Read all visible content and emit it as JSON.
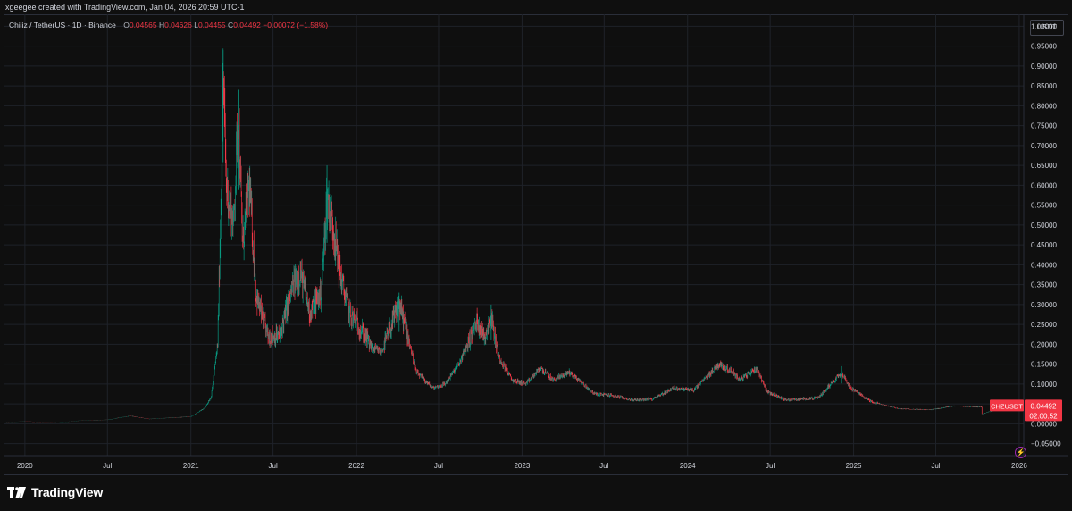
{
  "credit": "xgeegee created with TradingView.com, Jan 04, 2026 20:59 UTC-1",
  "symbol": {
    "name": "Chiliz / TetherUS · 1D · Binance",
    "o_label": "O",
    "o_value": "0.04565",
    "h_label": "H",
    "h_value": "0.04626",
    "l_label": "L",
    "l_value": "0.04455",
    "c_label": "C",
    "c_value": "0.04492",
    "change": "−0.00072 (−1.58%)"
  },
  "currency_button": "USDT",
  "brand": "TradingView",
  "icons": {
    "logo": "tradingview-logo-icon",
    "bolt": "lightning-icon"
  },
  "colors": {
    "up": "#089981",
    "down": "#f23645",
    "grid": "#1f2229",
    "text": "#d1d4dc",
    "price_line": "#f23645"
  },
  "chart_data": {
    "type": "candlestick",
    "symbol": "CHZUSDT",
    "interval": "1D",
    "exchange": "Binance",
    "last_price": 0.04492,
    "last_price_label": "0.04492",
    "price_tag_label": "CHZUSDT",
    "countdown": "02:00:52",
    "y_ticks": [
      "1.00000",
      "0.95000",
      "0.90000",
      "0.85000",
      "0.80000",
      "0.75000",
      "0.70000",
      "0.65000",
      "0.60000",
      "0.55000",
      "0.50000",
      "0.45000",
      "0.40000",
      "0.35000",
      "0.30000",
      "0.25000",
      "0.20000",
      "0.15000",
      "0.10000",
      "0.05000",
      "0.00000",
      "−0.05000"
    ],
    "y_tick_values": [
      1.0,
      0.95,
      0.9,
      0.85,
      0.8,
      0.75,
      0.7,
      0.65,
      0.6,
      0.55,
      0.5,
      0.45,
      0.4,
      0.35,
      0.3,
      0.25,
      0.2,
      0.15,
      0.1,
      0.05,
      0.0,
      -0.05
    ],
    "ylim": [
      -0.08,
      1.03
    ],
    "x_ticks": [
      {
        "label": "2020",
        "date": "2020-01-01"
      },
      {
        "label": "Jul",
        "date": "2020-07-01"
      },
      {
        "label": "2021",
        "date": "2021-01-01"
      },
      {
        "label": "Jul",
        "date": "2021-07-01"
      },
      {
        "label": "2022",
        "date": "2022-01-01"
      },
      {
        "label": "Jul",
        "date": "2022-07-01"
      },
      {
        "label": "2023",
        "date": "2023-01-01"
      },
      {
        "label": "Jul",
        "date": "2023-07-01"
      },
      {
        "label": "2024",
        "date": "2024-01-01"
      },
      {
        "label": "Jul",
        "date": "2024-07-01"
      },
      {
        "label": "2025",
        "date": "2025-01-01"
      },
      {
        "label": "Jul",
        "date": "2025-07-01"
      },
      {
        "label": "2026",
        "date": "2026-01-01"
      }
    ],
    "xlim": [
      "2019-11-15",
      "2026-01-11"
    ],
    "grid": true,
    "series": [
      {
        "values": [
          {
            "date": "2019-11-20",
            "close": 0.004
          },
          {
            "date": "2020-01-01",
            "close": 0.006
          },
          {
            "date": "2020-03-15",
            "close": 0.003
          },
          {
            "date": "2020-05-01",
            "close": 0.008
          },
          {
            "date": "2020-07-01",
            "close": 0.01
          },
          {
            "date": "2020-08-20",
            "close": 0.02
          },
          {
            "date": "2020-10-01",
            "close": 0.012
          },
          {
            "date": "2020-11-15",
            "close": 0.015
          },
          {
            "date": "2021-01-01",
            "close": 0.018
          },
          {
            "date": "2021-02-01",
            "close": 0.04
          },
          {
            "date": "2021-02-15",
            "close": 0.07
          },
          {
            "date": "2021-03-01",
            "close": 0.2
          },
          {
            "date": "2021-03-08",
            "close": 0.55
          },
          {
            "date": "2021-03-13",
            "close": 0.88
          },
          {
            "date": "2021-03-20",
            "close": 0.6
          },
          {
            "date": "2021-04-05",
            "close": 0.5
          },
          {
            "date": "2021-04-15",
            "close": 0.78
          },
          {
            "date": "2021-04-25",
            "close": 0.45
          },
          {
            "date": "2021-05-10",
            "close": 0.6
          },
          {
            "date": "2021-05-25",
            "close": 0.32
          },
          {
            "date": "2021-06-20",
            "close": 0.22
          },
          {
            "date": "2021-07-15",
            "close": 0.22
          },
          {
            "date": "2021-08-15",
            "close": 0.35
          },
          {
            "date": "2021-08-30",
            "close": 0.38
          },
          {
            "date": "2021-09-20",
            "close": 0.28
          },
          {
            "date": "2021-10-15",
            "close": 0.33
          },
          {
            "date": "2021-10-28",
            "close": 0.57
          },
          {
            "date": "2021-11-10",
            "close": 0.5
          },
          {
            "date": "2021-11-25",
            "close": 0.38
          },
          {
            "date": "2021-12-15",
            "close": 0.28
          },
          {
            "date": "2022-01-15",
            "close": 0.23
          },
          {
            "date": "2022-02-05",
            "close": 0.19
          },
          {
            "date": "2022-02-25",
            "close": 0.18
          },
          {
            "date": "2022-03-20",
            "close": 0.25
          },
          {
            "date": "2022-04-05",
            "close": 0.3
          },
          {
            "date": "2022-04-25",
            "close": 0.22
          },
          {
            "date": "2022-05-12",
            "close": 0.13
          },
          {
            "date": "2022-06-18",
            "close": 0.09
          },
          {
            "date": "2022-07-15",
            "close": 0.1
          },
          {
            "date": "2022-08-15",
            "close": 0.15
          },
          {
            "date": "2022-09-10",
            "close": 0.22
          },
          {
            "date": "2022-09-25",
            "close": 0.26
          },
          {
            "date": "2022-10-10",
            "close": 0.22
          },
          {
            "date": "2022-10-25",
            "close": 0.27
          },
          {
            "date": "2022-11-10",
            "close": 0.17
          },
          {
            "date": "2022-12-10",
            "close": 0.11
          },
          {
            "date": "2023-01-10",
            "close": 0.1
          },
          {
            "date": "2023-02-10",
            "close": 0.14
          },
          {
            "date": "2023-03-10",
            "close": 0.11
          },
          {
            "date": "2023-04-15",
            "close": 0.13
          },
          {
            "date": "2023-06-10",
            "close": 0.075
          },
          {
            "date": "2023-07-15",
            "close": 0.072
          },
          {
            "date": "2023-09-01",
            "close": 0.06
          },
          {
            "date": "2023-10-15",
            "close": 0.062
          },
          {
            "date": "2023-12-01",
            "close": 0.09
          },
          {
            "date": "2024-01-15",
            "close": 0.085
          },
          {
            "date": "2024-03-10",
            "close": 0.15
          },
          {
            "date": "2024-04-10",
            "close": 0.13
          },
          {
            "date": "2024-04-25",
            "close": 0.11
          },
          {
            "date": "2024-06-01",
            "close": 0.14
          },
          {
            "date": "2024-06-25",
            "close": 0.08
          },
          {
            "date": "2024-08-05",
            "close": 0.06
          },
          {
            "date": "2024-10-15",
            "close": 0.065
          },
          {
            "date": "2024-12-05",
            "close": 0.13
          },
          {
            "date": "2024-12-25",
            "close": 0.09
          },
          {
            "date": "2025-02-10",
            "close": 0.055
          },
          {
            "date": "2025-04-10",
            "close": 0.038
          },
          {
            "date": "2025-06-20",
            "close": 0.035
          },
          {
            "date": "2025-08-10",
            "close": 0.045
          },
          {
            "date": "2025-10-10",
            "close": 0.042
          },
          {
            "date": "2025-10-11",
            "close": 0.025
          },
          {
            "date": "2025-11-20",
            "close": 0.038
          },
          {
            "date": "2026-01-04",
            "close": 0.04492
          }
        ]
      }
    ]
  }
}
